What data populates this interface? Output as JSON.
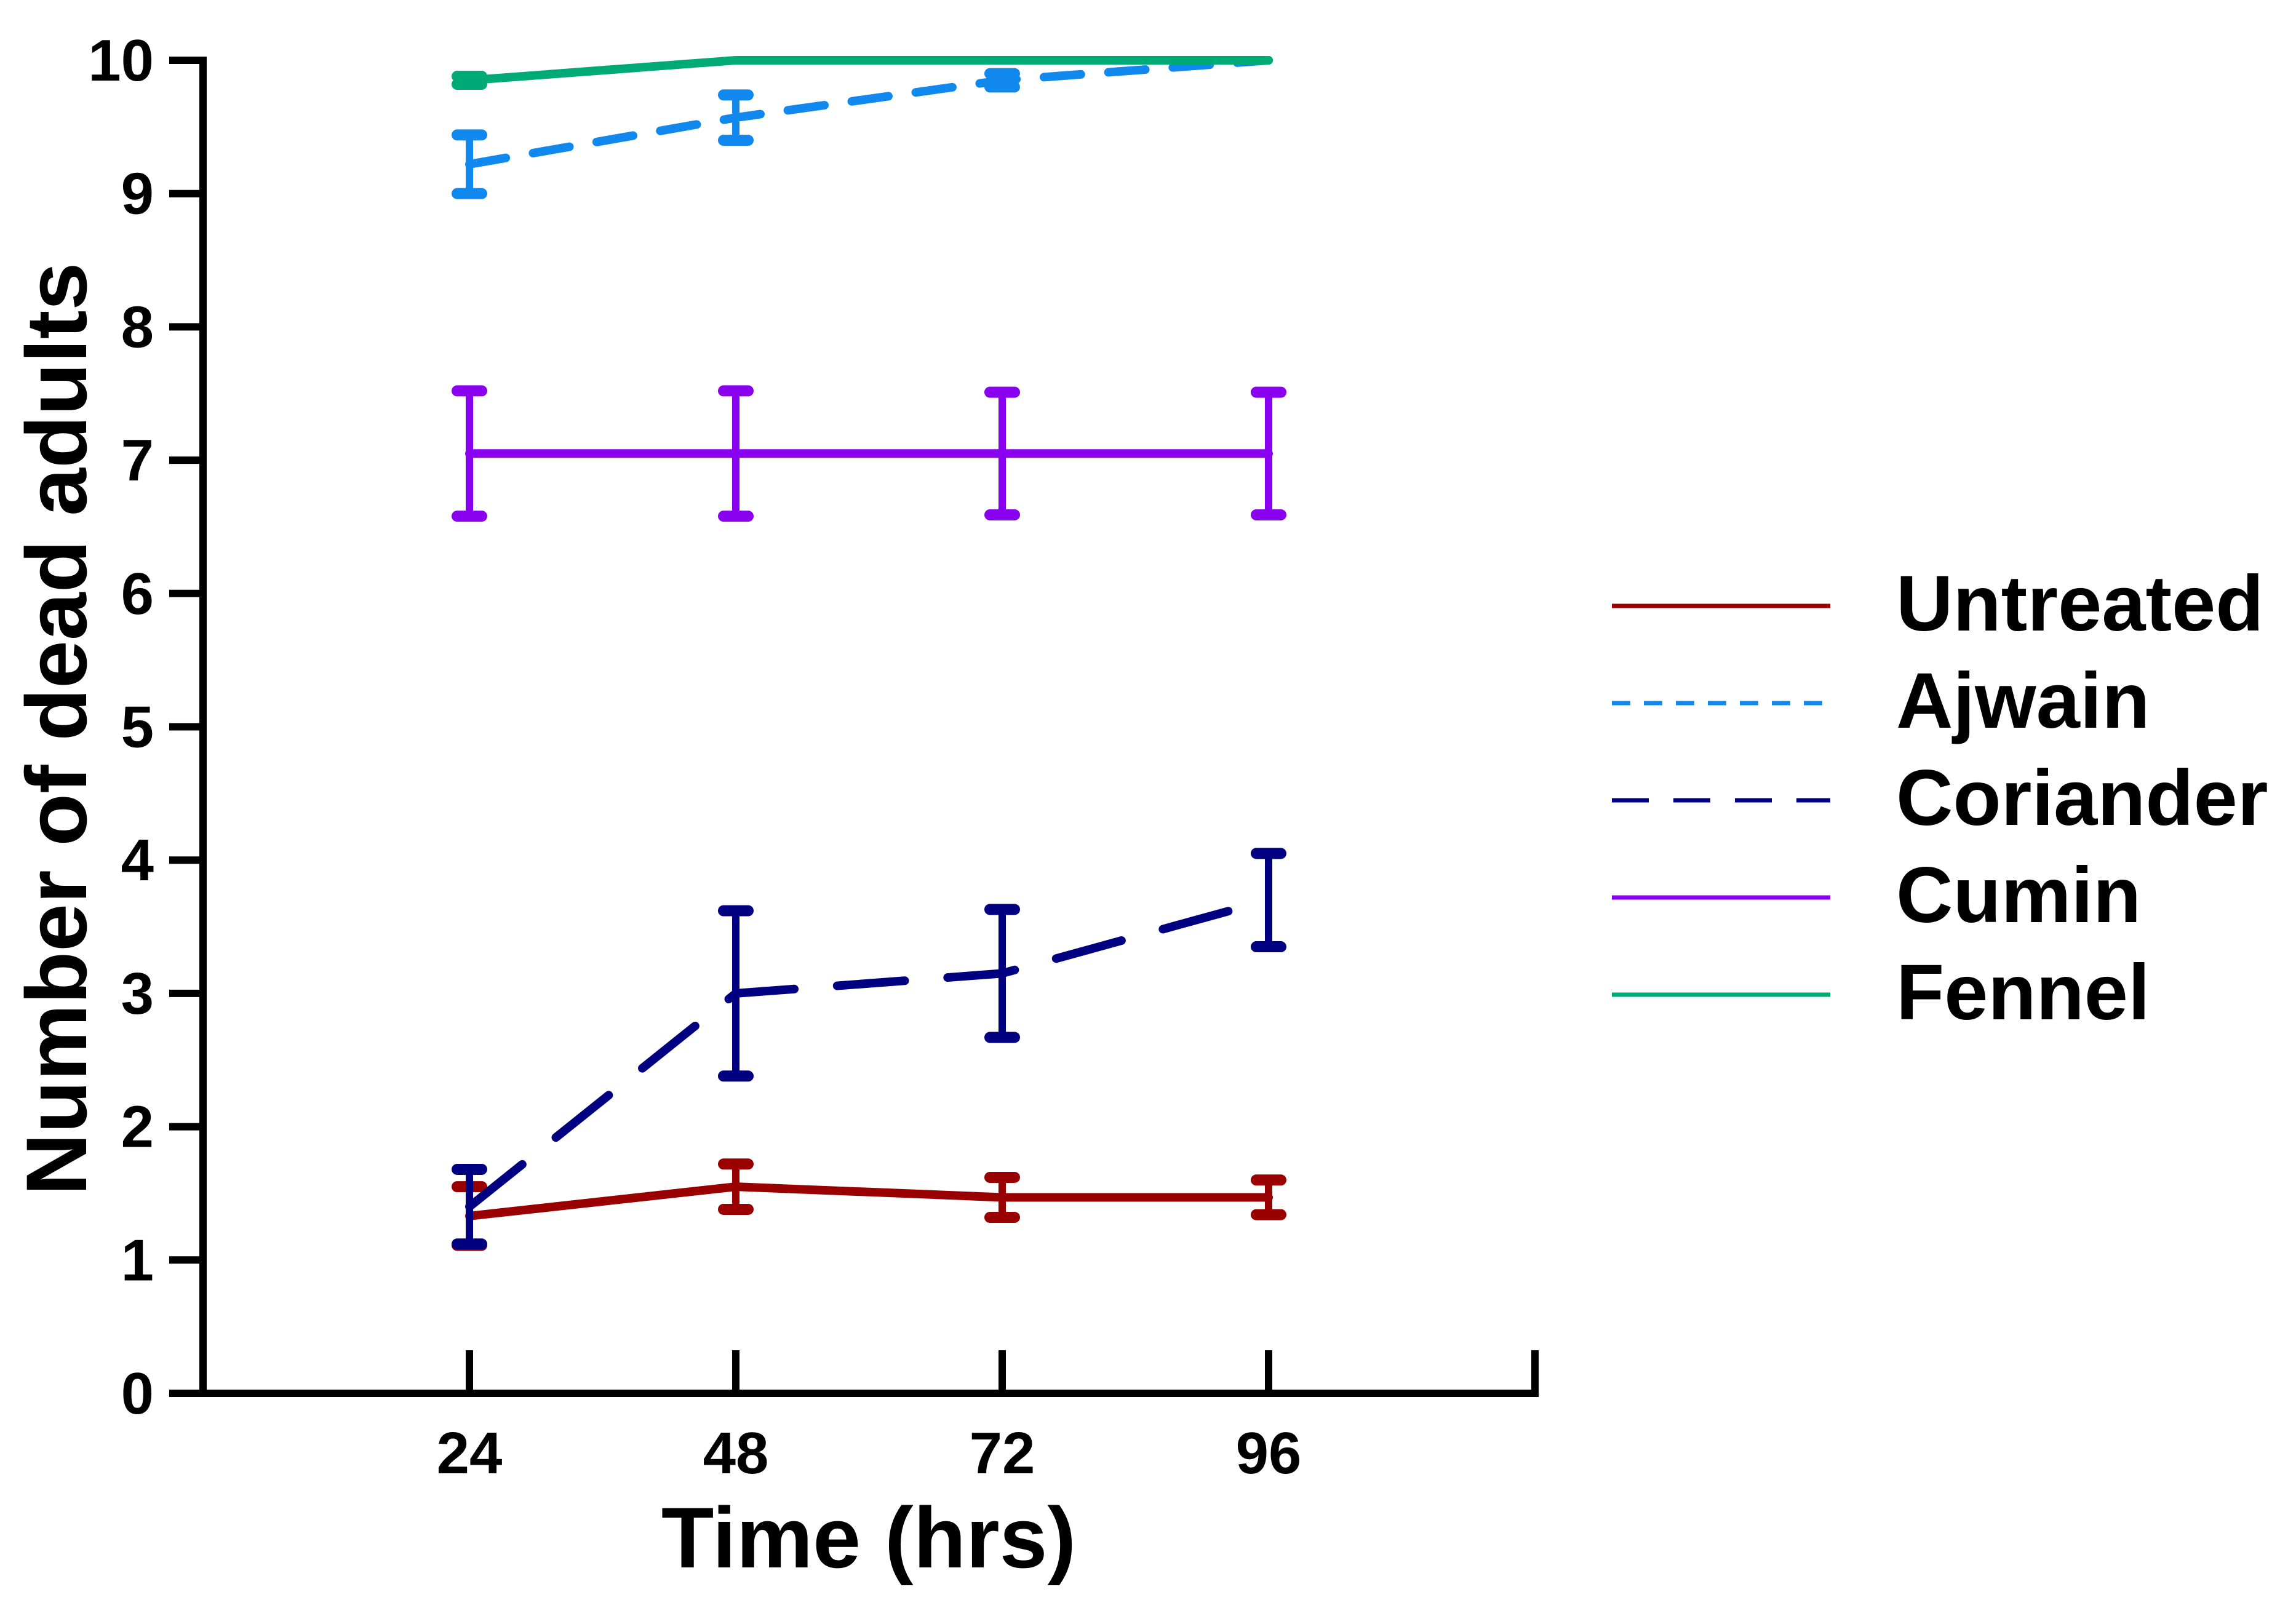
{
  "chart_data": {
    "type": "line",
    "title": "",
    "xlabel": "Time (hrs)",
    "ylabel": "Number of dead adults",
    "xlim": [
      0,
      120
    ],
    "ylim": [
      0,
      10
    ],
    "x": [
      24,
      48,
      72,
      96
    ],
    "x_tick_labels": [
      "24",
      "48",
      "72",
      "96"
    ],
    "y_ticks": [
      0,
      1,
      2,
      3,
      4,
      5,
      6,
      7,
      8,
      9,
      10
    ],
    "y_tick_labels": [
      "0",
      "1",
      "2",
      "3",
      "4",
      "5",
      "6",
      "7",
      "8",
      "9",
      "10"
    ],
    "grid": false,
    "legend_position": "right",
    "series": [
      {
        "name": "Untreated",
        "color": "#990000",
        "dash": "solid",
        "values": [
          1.33,
          1.55,
          1.47,
          1.47
        ],
        "errors": [
          0.22,
          0.17,
          0.15,
          0.13
        ]
      },
      {
        "name": "Ajwain",
        "color": "#1188ee",
        "dash": "short-dash",
        "values": [
          9.22,
          9.57,
          9.85,
          10.0
        ],
        "errors": [
          0.22,
          0.17,
          0.05,
          0.0
        ]
      },
      {
        "name": "Coriander",
        "color": "#000080",
        "dash": "long-dash",
        "values": [
          1.4,
          3.0,
          3.15,
          3.7
        ],
        "errors": [
          0.28,
          0.62,
          0.48,
          0.35
        ]
      },
      {
        "name": "Cumin",
        "color": "#8800ee",
        "dash": "solid",
        "values": [
          7.05,
          7.05,
          7.05,
          7.05
        ],
        "errors": [
          0.47,
          0.47,
          0.46,
          0.46
        ]
      },
      {
        "name": "Fennel",
        "color": "#00aa77",
        "dash": "solid",
        "values": [
          9.85,
          10.0,
          10.0,
          10.0
        ],
        "errors": [
          0.03,
          0.0,
          0.0,
          0.0
        ]
      }
    ]
  }
}
